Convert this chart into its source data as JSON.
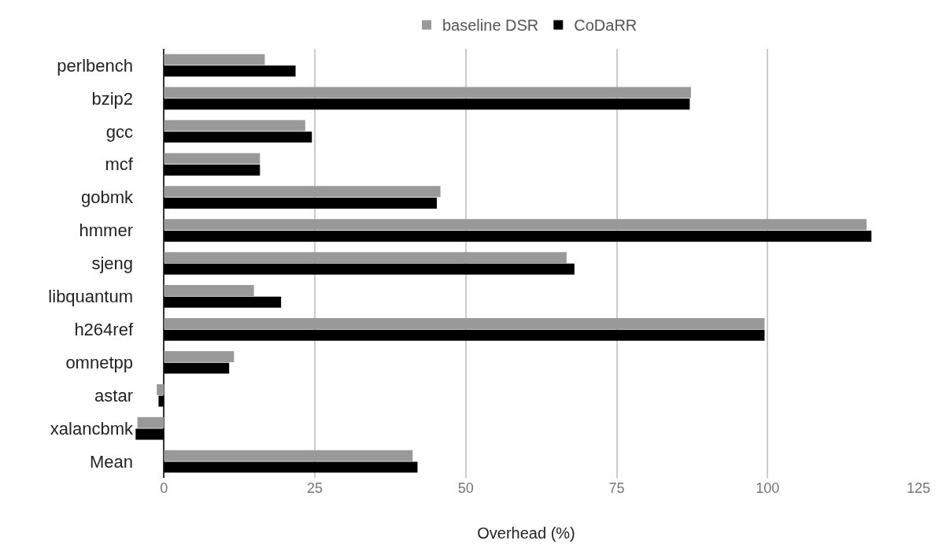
{
  "chart_data": {
    "type": "bar",
    "orientation": "horizontal",
    "xlabel": "Overhead (%)",
    "categories": [
      "perlbench",
      "bzip2",
      "gcc",
      "mcf",
      "gobmk",
      "hmmer",
      "sjeng",
      "libquantum",
      "h264ref",
      "omnetpp",
      "astar",
      "xalancbmk",
      "Mean"
    ],
    "series": [
      {
        "name": "baseline DSR",
        "color": "#999999",
        "values": [
          16.7,
          87.3,
          23.4,
          15.9,
          45.8,
          116.4,
          66.7,
          14.9,
          99.5,
          11.6,
          -1.2,
          -4.4,
          41.2
        ]
      },
      {
        "name": "CoDaRR",
        "color": "#000000",
        "values": [
          21.8,
          87.1,
          24.5,
          15.9,
          45.2,
          117.2,
          68.0,
          19.4,
          99.5,
          10.8,
          -0.9,
          -4.7,
          42.0
        ]
      }
    ],
    "xlim": [
      -5,
      125
    ],
    "xticks": [
      0,
      25,
      50,
      75,
      100,
      125
    ],
    "grid": "x",
    "legend": "top"
  }
}
